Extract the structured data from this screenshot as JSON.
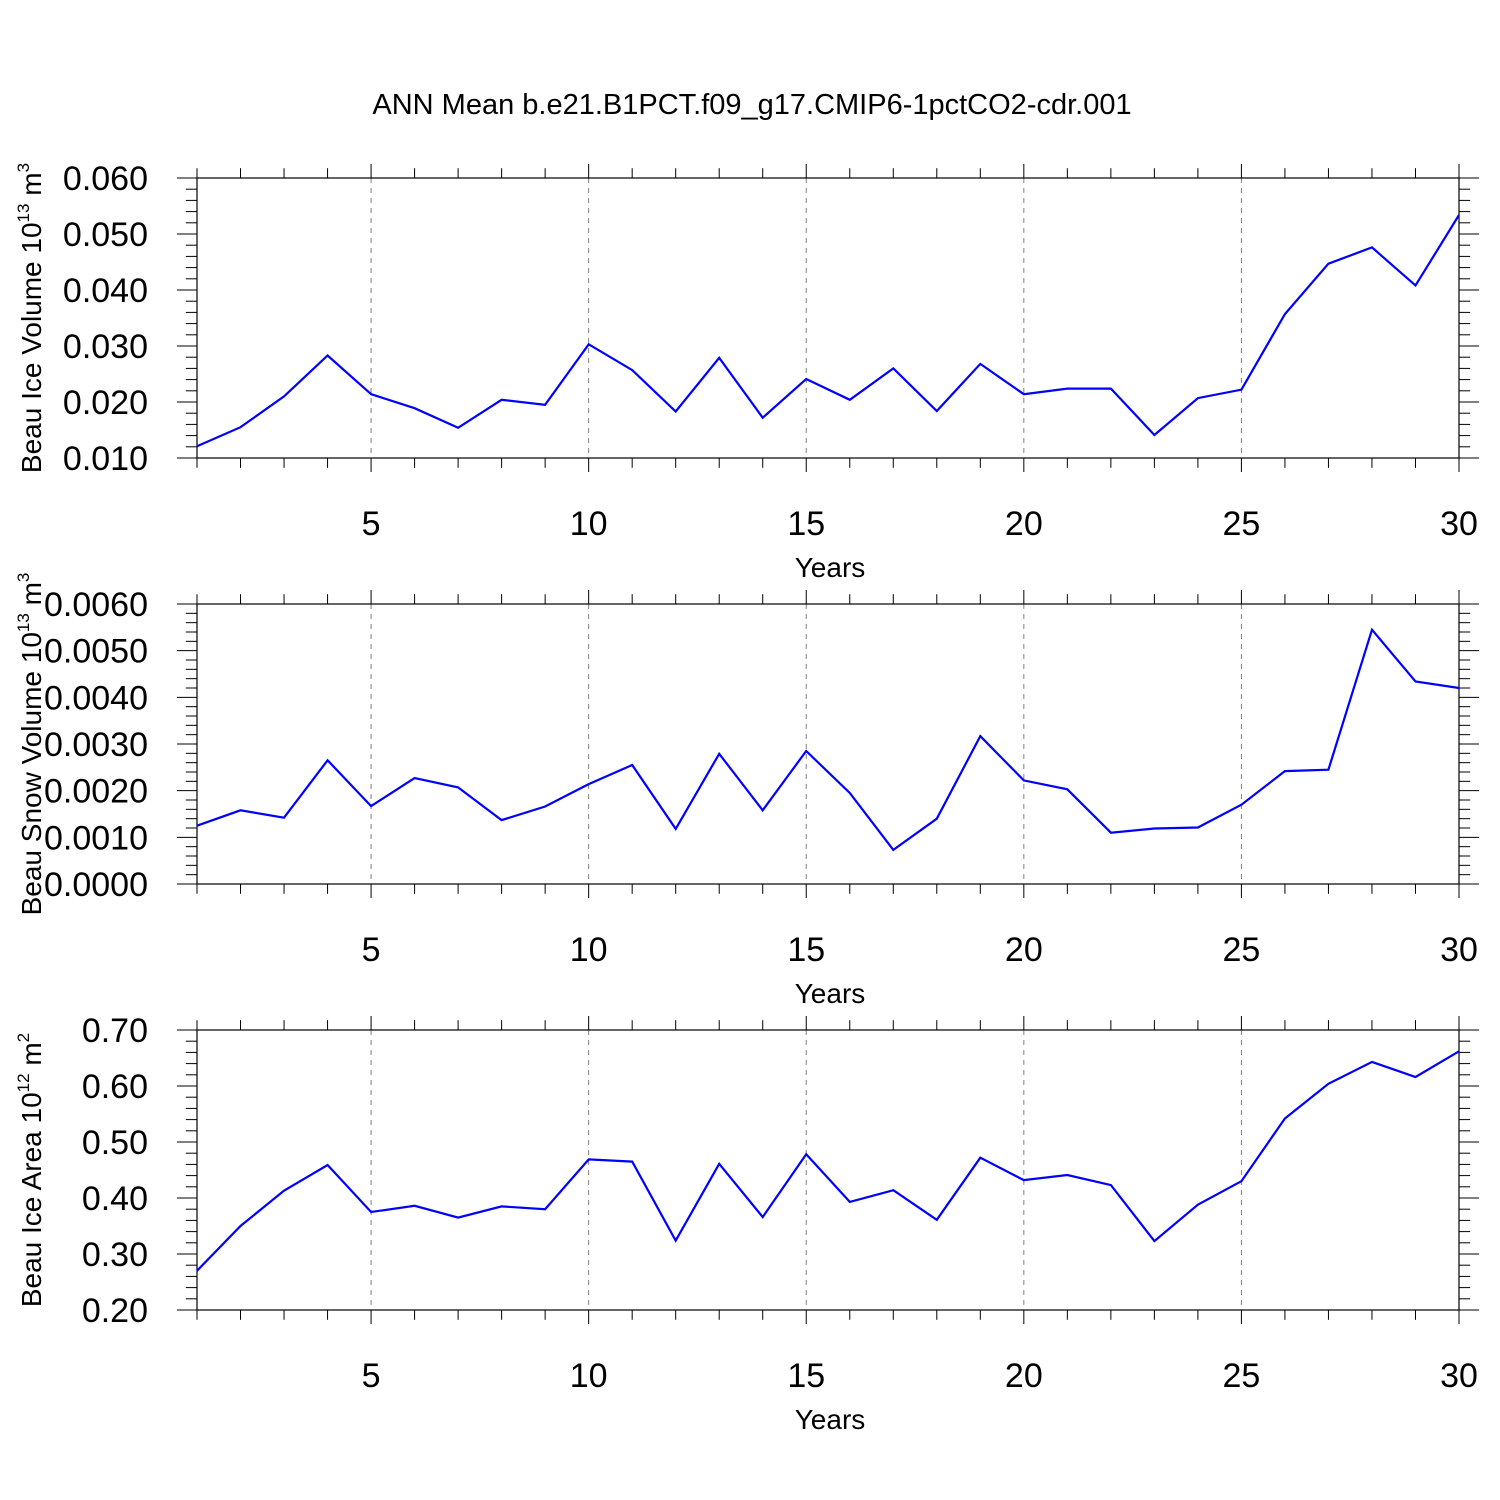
{
  "title": "ANN Mean b.e21.B1PCT.f09_g17.CMIP6-1pctCO2-cdr.001",
  "colors": {
    "line": "#0000ff",
    "axis": "#000000",
    "grid": "#808080"
  },
  "chart_data": [
    {
      "type": "line",
      "title": "ANN Mean b.e21.B1PCT.f09_g17.CMIP6-1pctCO2-cdr.001",
      "xlabel": "Years",
      "ylabel": {
        "text": "Beau Ice Volume 10",
        "sup": "13",
        "unit": " m",
        "unit_sup": "3"
      },
      "xlim": [
        1,
        30
      ],
      "ylim": [
        0.01,
        0.06
      ],
      "xticks": [
        5,
        10,
        15,
        20,
        25,
        30
      ],
      "yticks": [
        "0.010",
        "0.020",
        "0.030",
        "0.040",
        "0.050",
        "0.060"
      ],
      "grid": "vertical dashed at x ticks",
      "x": [
        1,
        2,
        3,
        4,
        5,
        6,
        7,
        8,
        9,
        10,
        11,
        12,
        13,
        14,
        15,
        16,
        17,
        18,
        19,
        20,
        21,
        22,
        23,
        24,
        25,
        26,
        27,
        28,
        29,
        30
      ],
      "series": [
        {
          "values": [
            0.0121,
            0.0155,
            0.021,
            0.0283,
            0.0214,
            0.0189,
            0.0154,
            0.0204,
            0.0195,
            0.0303,
            0.0257,
            0.0183,
            0.0279,
            0.0172,
            0.0241,
            0.0204,
            0.026,
            0.0184,
            0.0268,
            0.0214,
            0.0224,
            0.0224,
            0.0141,
            0.0207,
            0.0222,
            0.0357,
            0.0447,
            0.0476,
            0.0408,
            0.0534
          ]
        }
      ]
    },
    {
      "type": "line",
      "xlabel": "Years",
      "ylabel": {
        "text": "Beau Snow Volume 10",
        "sup": "13",
        "unit": " m",
        "unit_sup": "3"
      },
      "xlim": [
        1,
        30
      ],
      "ylim": [
        0.0,
        0.006
      ],
      "xticks": [
        5,
        10,
        15,
        20,
        25,
        30
      ],
      "yticks": [
        "0.0000",
        "0.0010",
        "0.0020",
        "0.0030",
        "0.0040",
        "0.0050",
        "0.0060"
      ],
      "grid": "vertical dashed at x ticks",
      "x": [
        1,
        2,
        3,
        4,
        5,
        6,
        7,
        8,
        9,
        10,
        11,
        12,
        13,
        14,
        15,
        16,
        17,
        18,
        19,
        20,
        21,
        22,
        23,
        24,
        25,
        26,
        27,
        28,
        29,
        30
      ],
      "series": [
        {
          "values": [
            0.00125,
            0.00158,
            0.00142,
            0.00265,
            0.00167,
            0.00227,
            0.00207,
            0.00137,
            0.00166,
            0.00214,
            0.00255,
            0.00118,
            0.00279,
            0.00158,
            0.00285,
            0.00195,
            0.00073,
            0.0014,
            0.00317,
            0.00222,
            0.00203,
            0.0011,
            0.00119,
            0.00121,
            0.0017,
            0.00242,
            0.00245,
            0.00545,
            0.00434,
            0.0042
          ]
        }
      ]
    },
    {
      "type": "line",
      "xlabel": "Years",
      "ylabel": {
        "text": "Beau Ice Area 10",
        "sup": "12",
        "unit": " m",
        "unit_sup": "2"
      },
      "xlim": [
        1,
        30
      ],
      "ylim": [
        0.2,
        0.7
      ],
      "xticks": [
        5,
        10,
        15,
        20,
        25,
        30
      ],
      "yticks": [
        "0.20",
        "0.30",
        "0.40",
        "0.50",
        "0.60",
        "0.70"
      ],
      "grid": "vertical dashed at x ticks",
      "x": [
        1,
        2,
        3,
        4,
        5,
        6,
        7,
        8,
        9,
        10,
        11,
        12,
        13,
        14,
        15,
        16,
        17,
        18,
        19,
        20,
        21,
        22,
        23,
        24,
        25,
        26,
        27,
        28,
        29,
        30
      ],
      "series": [
        {
          "values": [
            0.27,
            0.35,
            0.413,
            0.459,
            0.375,
            0.386,
            0.365,
            0.385,
            0.38,
            0.469,
            0.465,
            0.324,
            0.461,
            0.366,
            0.478,
            0.393,
            0.414,
            0.361,
            0.472,
            0.432,
            0.441,
            0.423,
            0.323,
            0.388,
            0.43,
            0.542,
            0.604,
            0.643,
            0.616,
            0.662
          ]
        }
      ]
    }
  ]
}
